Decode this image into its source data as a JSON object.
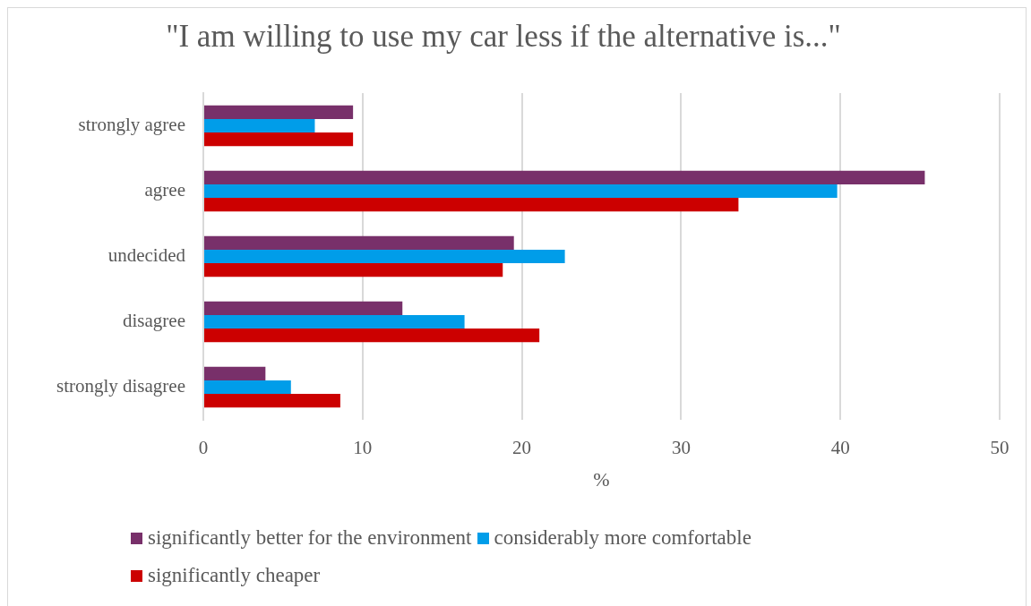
{
  "chart_data": {
    "type": "bar",
    "orientation": "horizontal",
    "title": "\"I am willing to use my car less if the alternative is...\"",
    "xlabel": "%",
    "categories": [
      "strongly agree",
      "agree",
      "undecided",
      "disagree",
      "strongly disagree"
    ],
    "series": [
      {
        "name": "significantly better for the environment",
        "color": "#78306a",
        "values": [
          9.4,
          45.3,
          19.5,
          12.5,
          3.9
        ]
      },
      {
        "name": "considerably more comfortable",
        "color": "#009de9",
        "values": [
          7.0,
          39.8,
          22.7,
          16.4,
          5.5
        ]
      },
      {
        "name": "significantly cheaper",
        "color": "#cc0000",
        "values": [
          9.4,
          33.6,
          18.8,
          21.1,
          8.6
        ]
      }
    ],
    "xlim": [
      0,
      50
    ],
    "xticks": [
      0,
      10,
      20,
      30,
      40,
      50
    ],
    "grid": "x",
    "legend": "bottom"
  }
}
